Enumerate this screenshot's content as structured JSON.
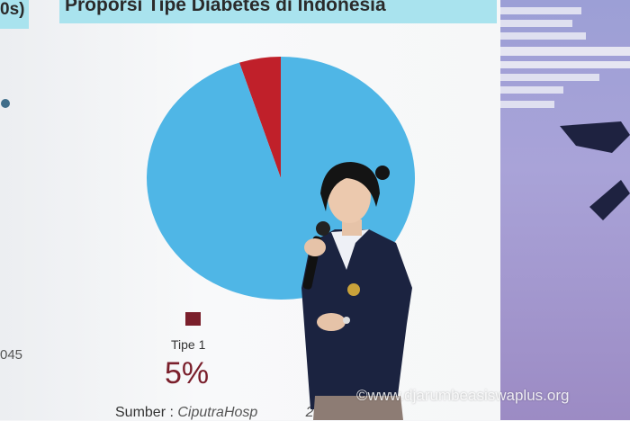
{
  "slide": {
    "title": "Proporsi Tipe Diabetes di Indonesia",
    "left_fragment": "0s)",
    "year_fragment": "045",
    "legend_label": "Tipe 1",
    "percent": "5%",
    "source_prefix": "Sumber : ",
    "source_name": "CiputraHosp",
    "source_year": "2024"
  },
  "chart_data": {
    "type": "pie",
    "title": "Proporsi Tipe Diabetes di Indonesia",
    "slices": [
      {
        "label": "Tipe 1",
        "value": 5,
        "color": "#c0202a"
      },
      {
        "value": 95,
        "color": "#4fb6e6"
      }
    ]
  },
  "watermark": "©www.djarumbeasiswaplus.org"
}
